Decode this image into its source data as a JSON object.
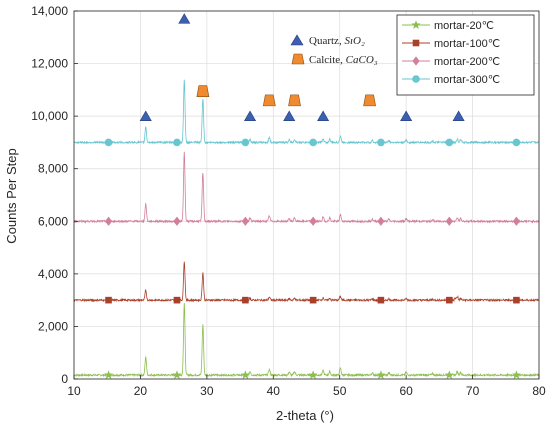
{
  "chart_data": {
    "type": "line",
    "xlabel": "2-theta (°)",
    "ylabel": "Counts Per Step",
    "xlim": [
      10,
      80
    ],
    "ylim": [
      0,
      14000
    ],
    "x_ticks": [
      10,
      20,
      30,
      40,
      50,
      60,
      70,
      80
    ],
    "x_tick_labels": [
      "10",
      "20",
      "30",
      "40",
      "50",
      "60",
      "70",
      "80"
    ],
    "y_ticks": [
      0,
      2000,
      4000,
      6000,
      8000,
      10000,
      12000,
      14000
    ],
    "y_tick_labels": [
      "0",
      "2,000",
      "4,000",
      "6,000",
      "8,000",
      "10,000",
      "12,000",
      "14,000"
    ],
    "grid": true,
    "legend_position": "top-right",
    "peaks": [
      {
        "x": 20.8,
        "h": 0.25
      },
      {
        "x": 26.6,
        "h": 1.0
      },
      {
        "x": 29.4,
        "h": 0.7
      },
      {
        "x": 36.5,
        "h": 0.05
      },
      {
        "x": 39.4,
        "h": 0.08
      },
      {
        "x": 42.4,
        "h": 0.04
      },
      {
        "x": 43.2,
        "h": 0.05
      },
      {
        "x": 47.5,
        "h": 0.06
      },
      {
        "x": 48.5,
        "h": 0.05
      },
      {
        "x": 50.1,
        "h": 0.1
      },
      {
        "x": 54.9,
        "h": 0.03
      },
      {
        "x": 57.4,
        "h": 0.03
      },
      {
        "x": 60.0,
        "h": 0.04
      },
      {
        "x": 64.0,
        "h": 0.02
      },
      {
        "x": 67.7,
        "h": 0.05
      },
      {
        "x": 68.2,
        "h": 0.04
      }
    ],
    "series": [
      {
        "name": "mortar-20℃",
        "color": "#8cbf4e",
        "marker": "star",
        "baseline": 150,
        "peak_scale": 2750,
        "marker_x": [
          15.2,
          25.5,
          35.8,
          46.0,
          56.2,
          66.5,
          76.6
        ]
      },
      {
        "name": "mortar-100℃",
        "color": "#a8402a",
        "marker": "square",
        "baseline": 3000,
        "peak_scale": 1500,
        "marker_x": [
          15.2,
          25.5,
          35.8,
          46.0,
          56.2,
          66.5,
          76.6
        ]
      },
      {
        "name": "mortar-200℃",
        "color": "#d27f9c",
        "marker": "diamond",
        "baseline": 6000,
        "peak_scale": 2650,
        "marker_x": [
          15.2,
          25.5,
          35.8,
          46.0,
          56.2,
          66.5,
          76.6
        ]
      },
      {
        "name": "mortar-300℃",
        "color": "#67c6d0",
        "marker": "circle",
        "baseline": 9000,
        "peak_scale": 2400,
        "marker_x": [
          15.2,
          25.5,
          35.8,
          46.0,
          56.2,
          66.5,
          76.6
        ]
      }
    ],
    "phase_markers": [
      {
        "name": "Quartz",
        "formula": "SıO₂",
        "shape": "triangle",
        "color": "#3d5fb0",
        "points": [
          {
            "x": 20.8,
            "y": 10000
          },
          {
            "x": 26.6,
            "y": 13700
          },
          {
            "x": 36.5,
            "y": 10000
          },
          {
            "x": 42.4,
            "y": 10000
          },
          {
            "x": 47.5,
            "y": 10000
          },
          {
            "x": 60.0,
            "y": 10000
          },
          {
            "x": 67.9,
            "y": 10000
          }
        ]
      },
      {
        "name": "Calcite",
        "formula": "CaCO₃",
        "shape": "trapezoid",
        "color": "#f08a2e",
        "points": [
          {
            "x": 29.4,
            "y": 10950
          },
          {
            "x": 39.4,
            "y": 10600
          },
          {
            "x": 43.2,
            "y": 10600
          },
          {
            "x": 54.5,
            "y": 10600
          }
        ]
      }
    ]
  }
}
